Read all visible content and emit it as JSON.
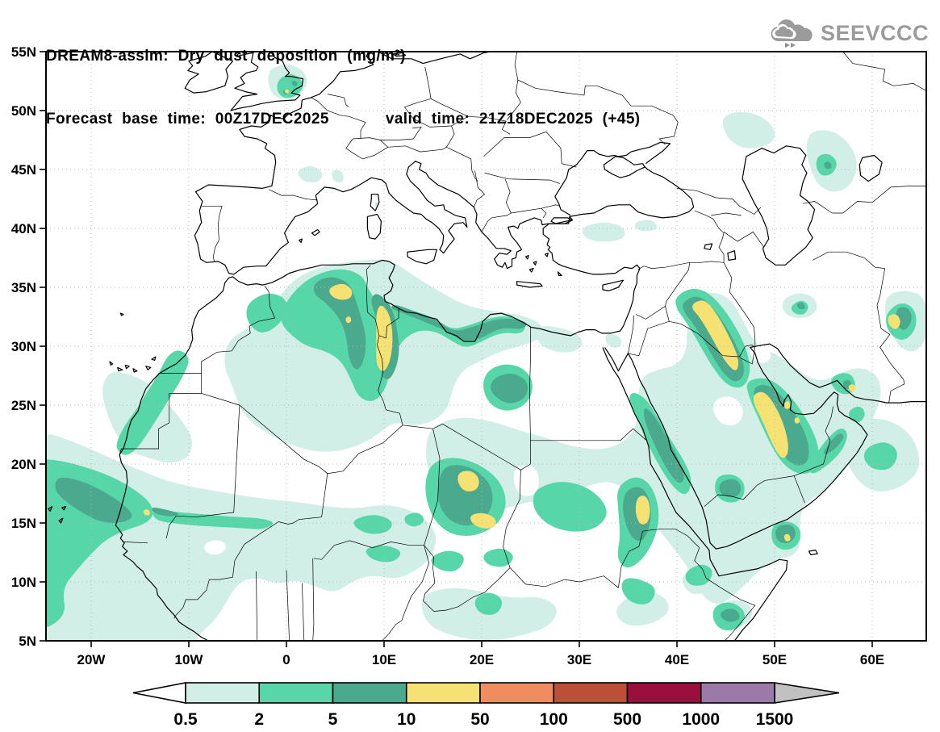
{
  "header": {
    "line1": "DREAM8-assim: Dry dust deposition (mg/m²)",
    "line2": "Forecast base time: 00Z17DEC2025      valid time: 21Z18DEC2025 (+45)"
  },
  "logo": {
    "text": "SEEVCCC",
    "color": "#9b9b9b"
  },
  "map": {
    "lat_ticks": [
      {
        "label": "55N",
        "value": 55
      },
      {
        "label": "50N",
        "value": 50
      },
      {
        "label": "45N",
        "value": 45
      },
      {
        "label": "40N",
        "value": 40
      },
      {
        "label": "35N",
        "value": 35
      },
      {
        "label": "30N",
        "value": 30
      },
      {
        "label": "25N",
        "value": 25
      },
      {
        "label": "20N",
        "value": 20
      },
      {
        "label": "15N",
        "value": 15
      },
      {
        "label": "10N",
        "value": 10
      },
      {
        "label": "5N",
        "value": 5
      }
    ],
    "lon_ticks": [
      {
        "label": "20W",
        "value": -20
      },
      {
        "label": "10W",
        "value": -10
      },
      {
        "label": "0",
        "value": 0
      },
      {
        "label": "10E",
        "value": 10
      },
      {
        "label": "20E",
        "value": 20
      },
      {
        "label": "30E",
        "value": 30
      },
      {
        "label": "40E",
        "value": 40
      },
      {
        "label": "50E",
        "value": 50
      },
      {
        "label": "60E",
        "value": 60
      }
    ]
  },
  "colorbar": {
    "labels": [
      "0.5",
      "2",
      "5",
      "10",
      "50",
      "100",
      "500",
      "1000",
      "1500"
    ],
    "box_colors": [
      "#d2efe7",
      "#57d7a9",
      "#4ba98d",
      "#f6e272",
      "#ef8d60",
      "#bd4f38",
      "#9a0f3e",
      "#9b79a8"
    ],
    "under_color": "#ffffff",
    "over_color": "#c1c1c1"
  },
  "chart_data": {
    "type": "heatmap",
    "subtype": "filled-contour-geographic-map",
    "model": "DREAM8-assim",
    "variable": "Dry dust deposition",
    "units": "mg/m²",
    "base_time": "00Z17DEC2025",
    "valid_time": "21Z18DEC2025",
    "forecast_hour": 45,
    "lon_range": [
      -24.6,
      65.5
    ],
    "lat_range": [
      5,
      55
    ],
    "grid": "dotted, every 5° lat / 10° lon",
    "legend_position": "bottom horizontal colorbar with under/over arrows",
    "contour_levels": [
      0.5,
      2,
      5,
      10,
      50,
      100,
      500,
      1000,
      1500
    ],
    "level_colors": [
      "#d2efe7",
      "#57d7a9",
      "#4ba98d",
      "#f6e272",
      "#ef8d60",
      "#bd4f38",
      "#9a0f3e",
      "#9b79a8",
      "#c1c1c1"
    ],
    "max_level_shaded_on_map": 50,
    "regions": [
      {
        "name": "Senegal–Mauritania coast & tropical Atlantic",
        "center_lonlat": [
          -18,
          16.5
        ],
        "peak_band": "5–10, small >10 spot near Senegal"
      },
      {
        "name": "Western Sahara coastal band",
        "center_lonlat": [
          -13.5,
          25
        ],
        "peak_band": "2–5"
      },
      {
        "name": "NE Morocco / W Algeria",
        "center_lonlat": [
          -2,
          32.5
        ],
        "peak_band": "2–5"
      },
      {
        "name": "NE Algeria–Tunisia–NW Libya band",
        "center_lonlat": [
          9.5,
          31
        ],
        "peak_band": "10–50 (yellow band 28–35N)"
      },
      {
        "name": "Gulf of Sidra coast, Libya",
        "center_lonlat": [
          18,
          31.5
        ],
        "peak_band": "5–10"
      },
      {
        "name": "SE Libya / NW Egypt border",
        "center_lonlat": [
          23,
          26
        ],
        "peak_band": "5–10"
      },
      {
        "name": "Chad (Bodélé) spots",
        "center_lonlat": [
          19,
          17
        ],
        "peak_band": "10–50"
      },
      {
        "name": "Central Sudan",
        "center_lonlat": [
          29,
          16
        ],
        "peak_band": "2–5"
      },
      {
        "name": "E Sudan / Eritrea",
        "center_lonlat": [
          36.5,
          16
        ],
        "peak_band": "10–50"
      },
      {
        "name": "SE Red Sea coastal band",
        "center_lonlat": [
          39,
          21
        ],
        "peak_band": "5–10"
      },
      {
        "name": "Iraq – N Saudi diagonal band",
        "center_lonlat": [
          44,
          30.5
        ],
        "peak_band": "10–50"
      },
      {
        "name": "E Saudi – Qatar – UAE diagonal band",
        "center_lonlat": [
          50,
          23
        ],
        "peak_band": "10–50"
      },
      {
        "name": "SW Yemen / Gulf of Aden spot",
        "center_lonlat": [
          51,
          13.7
        ],
        "peak_band": "10–50"
      },
      {
        "name": "Oman",
        "center_lonlat": [
          55.5,
          21
        ],
        "peak_band": "2–5"
      },
      {
        "name": "Strait of Hormuz / SE Iran",
        "center_lonlat": [
          57.8,
          26.4
        ],
        "peak_band": "10–50 spot"
      },
      {
        "name": "Iran–Pakistan border",
        "center_lonlat": [
          62.3,
          32
        ],
        "peak_band": "10–50 spot"
      },
      {
        "name": "SE England",
        "center_lonlat": [
          0.3,
          52
        ],
        "peak_band": "5–10 small, tiny >10 dot"
      },
      {
        "name": "S France spots",
        "center_lonlat": [
          3,
          44.4
        ],
        "peak_band": "0.5–2"
      },
      {
        "name": "C Anatolia patches",
        "center_lonlat": [
          33,
          39.5
        ],
        "peak_band": "0.5–2"
      },
      {
        "name": "N Caspian / SW Kazakhstan",
        "center_lonlat": [
          55,
          45.3
        ],
        "peak_band": "2–5 spot"
      },
      {
        "name": "Ethiopia / Somalia (Horn)",
        "center_lonlat": [
          45,
          7
        ],
        "peak_band": "2–5"
      },
      {
        "name": "Arabian Sea patches",
        "center_lonlat": [
          61,
          21
        ],
        "peak_band": "0.5–2"
      }
    ]
  }
}
